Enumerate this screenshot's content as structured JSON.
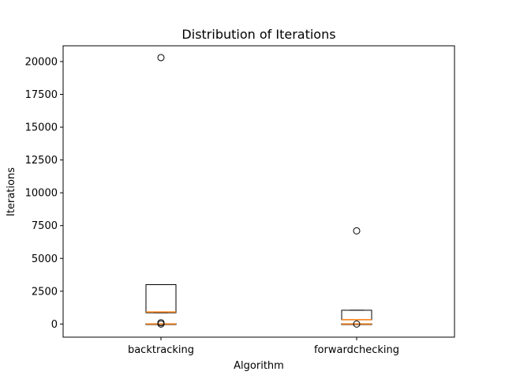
{
  "chart_data": {
    "type": "box",
    "title": "Distribution of Iterations",
    "xlabel": "Algorithm",
    "ylabel": "Iterations",
    "ylim": [
      -1000,
      21200
    ],
    "yticks": [
      0,
      2500,
      5000,
      7500,
      10000,
      12500,
      15000,
      17500,
      20000
    ],
    "ytick_labels": [
      "0",
      "2500",
      "5000",
      "7500",
      "10000",
      "12500",
      "15000",
      "17500",
      "20000"
    ],
    "grid": false,
    "colors": {
      "box": "#000000",
      "median": "#ff7f0e",
      "flier": "#000000"
    },
    "categories": [
      "backtracking",
      "forwardchecking"
    ],
    "series": [
      {
        "name": "backtracking",
        "overlay_boxes": [
          {
            "whisker_low": 860,
            "q1": 860,
            "median": 920,
            "q3": 3000,
            "whisker_high": 3000
          },
          {
            "whisker_low": 0,
            "q1": 0,
            "median": 0,
            "q3": 20,
            "whisker_high": 20
          }
        ],
        "fliers": [
          20300,
          100,
          0
        ]
      },
      {
        "name": "forwardchecking",
        "overlay_boxes": [
          {
            "whisker_low": 320,
            "q1": 320,
            "median": 330,
            "q3": 1050,
            "whisker_high": 1050
          },
          {
            "whisker_low": 0,
            "q1": 0,
            "median": 0,
            "q3": 20,
            "whisker_high": 20
          }
        ],
        "fliers": [
          7100,
          0
        ]
      }
    ]
  }
}
